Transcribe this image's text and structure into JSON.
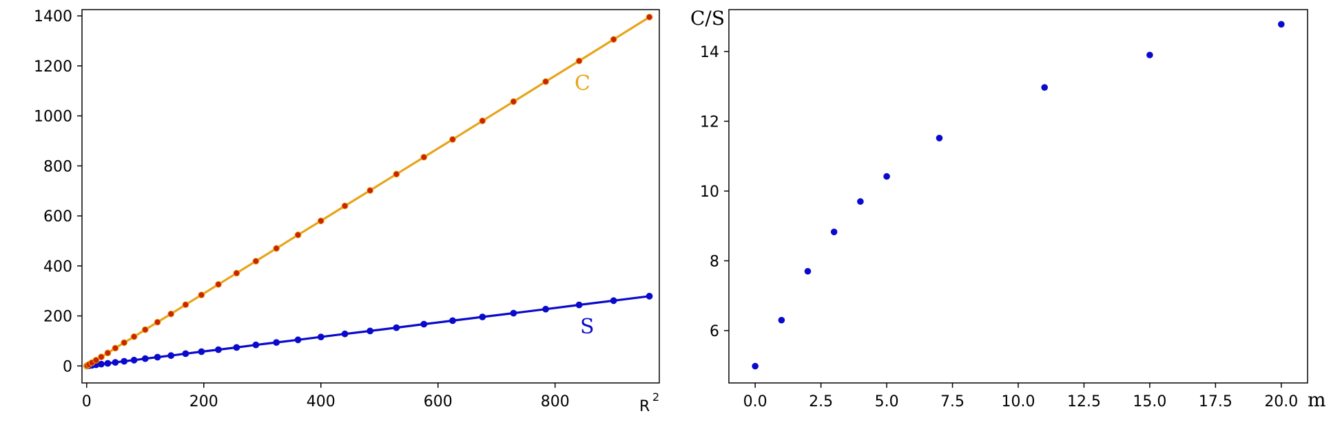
{
  "chart_data": [
    {
      "type": "line",
      "title": "",
      "xlabel": "R",
      "xlabel_superscript": "2",
      "ylabel": "",
      "xlim": [
        -8,
        978
      ],
      "ylim": [
        -68,
        1425
      ],
      "xticks": [
        0,
        200,
        400,
        600,
        800
      ],
      "xtick_labels": [
        "0",
        "200",
        "400",
        "600",
        "800"
      ],
      "yticks": [
        0,
        200,
        400,
        600,
        800,
        1000,
        1200,
        1400
      ],
      "ytick_labels": [
        "0",
        "200",
        "400",
        "600",
        "800",
        "1000",
        "1200",
        "1400"
      ],
      "grid": false,
      "x": [
        0,
        1,
        4,
        9,
        16,
        25,
        36,
        49,
        64,
        81,
        100,
        121,
        144,
        169,
        196,
        225,
        256,
        289,
        324,
        361,
        400,
        441,
        484,
        529,
        576,
        625,
        676,
        729,
        784,
        841,
        900,
        961
      ],
      "series": [
        {
          "name": "C",
          "label": "C",
          "color": "#E8A317",
          "marker_color": "#CC2200",
          "values": [
            0,
            1.5,
            6,
            13,
            23,
            36,
            52,
            71,
            93,
            117,
            145,
            175,
            208,
            245,
            284,
            326,
            371,
            419,
            470,
            524,
            580,
            640,
            702,
            767,
            835,
            906,
            980,
            1057,
            1137,
            1220,
            1306,
            1395
          ]
        },
        {
          "name": "S",
          "label": "S",
          "color": "#0A0ACC",
          "marker_color": "#0A0ACC",
          "values": [
            0,
            0.3,
            1.2,
            2.6,
            4.6,
            7.2,
            10.4,
            14.2,
            18.5,
            23.4,
            29,
            35,
            41.5,
            49,
            57,
            65,
            74,
            84,
            94,
            104.5,
            116,
            128,
            140,
            153,
            167,
            181,
            196,
            211,
            227,
            244,
            261,
            279
          ]
        }
      ]
    },
    {
      "type": "scatter",
      "title": "",
      "xlabel": "m",
      "ylabel": "C/S",
      "xlim": [
        -1,
        21
      ],
      "ylim": [
        4.5,
        15.2
      ],
      "xticks": [
        0,
        2.5,
        5,
        7.5,
        10,
        12.5,
        15,
        17.5,
        20
      ],
      "xtick_labels": [
        "0.0",
        "2.5",
        "5.0",
        "7.5",
        "10.0",
        "12.5",
        "15.0",
        "17.5",
        "20.0"
      ],
      "yticks": [
        6,
        8,
        10,
        12,
        14
      ],
      "ytick_labels": [
        "6",
        "8",
        "10",
        "12",
        "14"
      ],
      "grid": false,
      "color": "#0A0ACC",
      "x": [
        0,
        1,
        2,
        3,
        4,
        5,
        7,
        11,
        15,
        20
      ],
      "y": [
        4.98,
        6.3,
        7.7,
        8.83,
        9.7,
        10.42,
        11.52,
        12.97,
        13.9,
        14.78
      ]
    }
  ]
}
